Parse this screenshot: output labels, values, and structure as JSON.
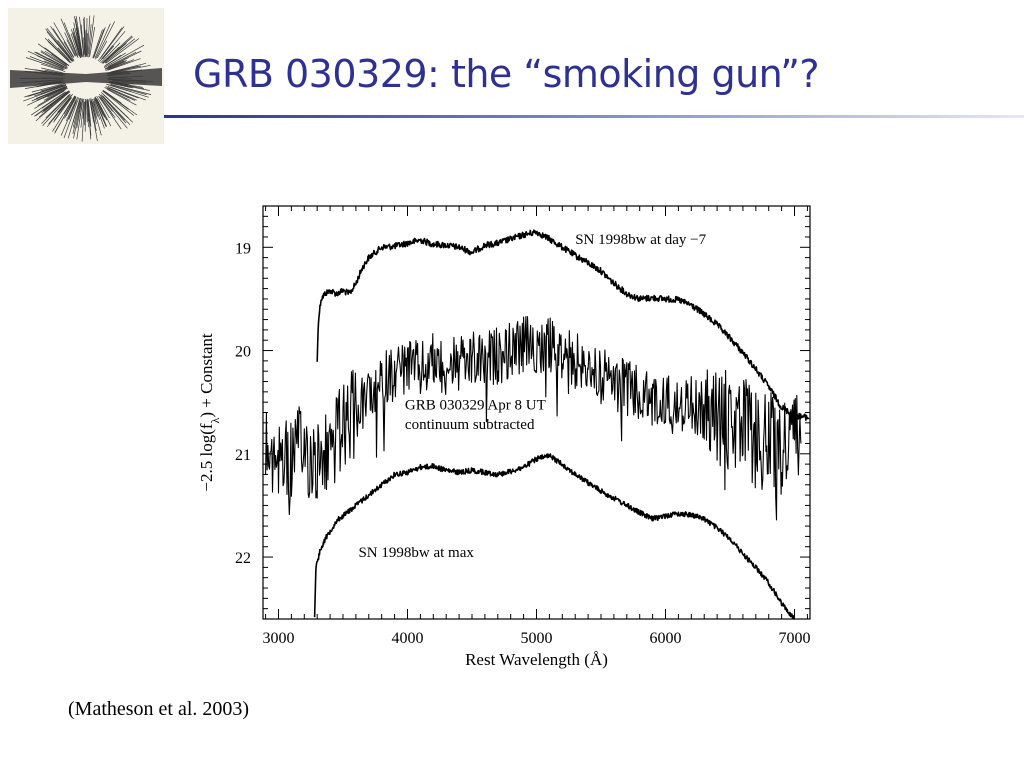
{
  "slide": {
    "title": "GRB 030329: the “smoking gun”?",
    "citation": "(Matheson et al. 2003)"
  },
  "colors": {
    "title": "#2e3192",
    "rule": "#2e3192",
    "ink": "#000000",
    "logo_bg": "#f4f1e6"
  },
  "logo": {
    "icon": "supernova-explosion-icon"
  },
  "chart_data": {
    "type": "line",
    "xlabel": "Rest Wavelength (Å)",
    "ylabel": "−2.5 log(f",
    "ylabel_sub": "λ",
    "ylabel_tail": ") + Constant",
    "xlim": [
      2880,
      7120
    ],
    "ylim": [
      22.6,
      18.6
    ],
    "y_inverted": true,
    "xticks": [
      3000,
      4000,
      5000,
      6000,
      7000
    ],
    "xtick_labels": [
      "3000",
      "4000",
      "5000",
      "6000",
      "7000"
    ],
    "yticks": [
      19,
      20,
      21,
      22
    ],
    "ytick_labels": [
      "19",
      "20",
      "21",
      "22"
    ],
    "grid": false,
    "series": [
      {
        "name": "SN 1998bw at day −7",
        "noise": 0.03,
        "points": [
          [
            3300,
            20.1
          ],
          [
            3310,
            19.7
          ],
          [
            3330,
            19.5
          ],
          [
            3360,
            19.45
          ],
          [
            3400,
            19.42
          ],
          [
            3450,
            19.45
          ],
          [
            3500,
            19.42
          ],
          [
            3550,
            19.45
          ],
          [
            3600,
            19.35
          ],
          [
            3650,
            19.2
          ],
          [
            3700,
            19.1
          ],
          [
            3800,
            19.0
          ],
          [
            3900,
            18.99
          ],
          [
            4000,
            18.96
          ],
          [
            4100,
            18.93
          ],
          [
            4200,
            18.97
          ],
          [
            4300,
            18.98
          ],
          [
            4400,
            19.0
          ],
          [
            4500,
            19.05
          ],
          [
            4600,
            18.98
          ],
          [
            4700,
            18.96
          ],
          [
            4800,
            18.92
          ],
          [
            4900,
            18.88
          ],
          [
            5000,
            18.85
          ],
          [
            5100,
            18.92
          ],
          [
            5200,
            19.0
          ],
          [
            5300,
            19.08
          ],
          [
            5400,
            19.15
          ],
          [
            5500,
            19.23
          ],
          [
            5600,
            19.35
          ],
          [
            5700,
            19.45
          ],
          [
            5800,
            19.5
          ],
          [
            5900,
            19.49
          ],
          [
            6000,
            19.5
          ],
          [
            6100,
            19.51
          ],
          [
            6200,
            19.56
          ],
          [
            6300,
            19.65
          ],
          [
            6400,
            19.75
          ],
          [
            6500,
            19.88
          ],
          [
            6600,
            20.02
          ],
          [
            6700,
            20.18
          ],
          [
            6800,
            20.35
          ],
          [
            6900,
            20.55
          ],
          [
            7000,
            20.63
          ],
          [
            7110,
            20.65
          ]
        ]
      },
      {
        "name": "GRB 030329 Apr 8 UT continuum subtracted",
        "noise": 0.28,
        "points": [
          [
            2900,
            21.0
          ],
          [
            3000,
            21.0
          ],
          [
            3100,
            21.05
          ],
          [
            3200,
            20.95
          ],
          [
            3300,
            21.1
          ],
          [
            3400,
            20.95
          ],
          [
            3500,
            20.75
          ],
          [
            3600,
            20.6
          ],
          [
            3700,
            20.45
          ],
          [
            3800,
            20.3
          ],
          [
            3900,
            20.2
          ],
          [
            4000,
            20.15
          ],
          [
            4100,
            20.2
          ],
          [
            4200,
            20.1
          ],
          [
            4300,
            20.15
          ],
          [
            4400,
            20.15
          ],
          [
            4500,
            20.1
          ],
          [
            4600,
            20.1
          ],
          [
            4700,
            20.05
          ],
          [
            4800,
            20.0
          ],
          [
            4900,
            19.95
          ],
          [
            5000,
            19.95
          ],
          [
            5100,
            19.95
          ],
          [
            5200,
            20.05
          ],
          [
            5300,
            20.1
          ],
          [
            5400,
            20.15
          ],
          [
            5500,
            20.25
          ],
          [
            5600,
            20.3
          ],
          [
            5700,
            20.35
          ],
          [
            5800,
            20.45
          ],
          [
            5900,
            20.5
          ],
          [
            6000,
            20.5
          ],
          [
            6100,
            20.55
          ],
          [
            6200,
            20.5
          ],
          [
            6300,
            20.6
          ],
          [
            6400,
            20.65
          ],
          [
            6500,
            20.7
          ],
          [
            6600,
            20.75
          ],
          [
            6700,
            20.85
          ],
          [
            6800,
            20.9
          ],
          [
            6900,
            20.95
          ],
          [
            7000,
            20.85
          ],
          [
            7050,
            20.9
          ]
        ]
      },
      {
        "name": "SN 1998bw at max",
        "noise": 0.025,
        "points": [
          [
            3280,
            22.6
          ],
          [
            3290,
            22.1
          ],
          [
            3320,
            21.95
          ],
          [
            3350,
            21.85
          ],
          [
            3400,
            21.75
          ],
          [
            3450,
            21.65
          ],
          [
            3500,
            21.6
          ],
          [
            3600,
            21.5
          ],
          [
            3700,
            21.4
          ],
          [
            3800,
            21.3
          ],
          [
            3900,
            21.2
          ],
          [
            4000,
            21.18
          ],
          [
            4100,
            21.13
          ],
          [
            4200,
            21.12
          ],
          [
            4300,
            21.16
          ],
          [
            4400,
            21.18
          ],
          [
            4500,
            21.16
          ],
          [
            4600,
            21.18
          ],
          [
            4700,
            21.2
          ],
          [
            4800,
            21.17
          ],
          [
            4900,
            21.13
          ],
          [
            5000,
            21.05
          ],
          [
            5100,
            21.02
          ],
          [
            5200,
            21.1
          ],
          [
            5300,
            21.2
          ],
          [
            5400,
            21.28
          ],
          [
            5500,
            21.36
          ],
          [
            5600,
            21.43
          ],
          [
            5700,
            21.5
          ],
          [
            5800,
            21.57
          ],
          [
            5900,
            21.63
          ],
          [
            6000,
            21.6
          ],
          [
            6100,
            21.58
          ],
          [
            6200,
            21.59
          ],
          [
            6300,
            21.63
          ],
          [
            6400,
            21.72
          ],
          [
            6500,
            21.82
          ],
          [
            6600,
            21.97
          ],
          [
            6700,
            22.1
          ],
          [
            6800,
            22.25
          ],
          [
            6900,
            22.45
          ],
          [
            7000,
            22.6
          ]
        ]
      }
    ],
    "annotations": [
      {
        "text": "SN 1998bw at day −7",
        "x": 5300,
        "y": 18.97
      },
      {
        "text": "GRB 030329 Apr 8 UT",
        "x": 3980,
        "y": 20.57
      },
      {
        "text": "continuum subtracted",
        "x": 3980,
        "y": 20.76
      },
      {
        "text": "SN 1998bw at max",
        "x": 3620,
        "y": 22.0
      }
    ]
  }
}
